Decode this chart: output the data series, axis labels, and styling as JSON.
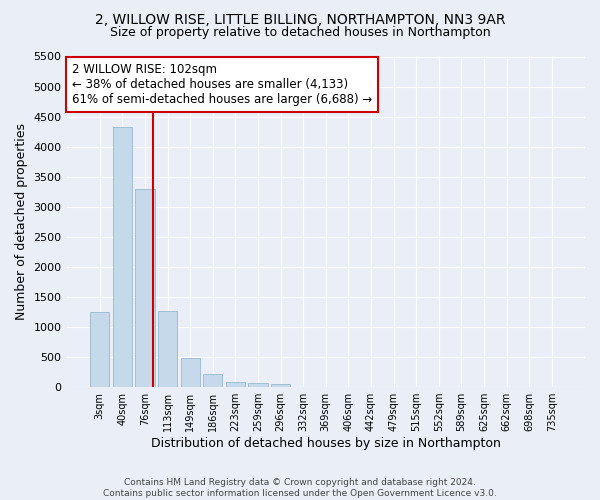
{
  "title1": "2, WILLOW RISE, LITTLE BILLING, NORTHAMPTON, NN3 9AR",
  "title2": "Size of property relative to detached houses in Northampton",
  "xlabel": "Distribution of detached houses by size in Northampton",
  "ylabel": "Number of detached properties",
  "footnote": "Contains HM Land Registry data © Crown copyright and database right 2024.\nContains public sector information licensed under the Open Government Licence v3.0.",
  "bar_labels": [
    "3sqm",
    "40sqm",
    "76sqm",
    "113sqm",
    "149sqm",
    "186sqm",
    "223sqm",
    "259sqm",
    "296sqm",
    "332sqm",
    "369sqm",
    "406sqm",
    "442sqm",
    "479sqm",
    "515sqm",
    "552sqm",
    "589sqm",
    "625sqm",
    "662sqm",
    "698sqm",
    "735sqm"
  ],
  "bar_values": [
    1250,
    4330,
    3300,
    1270,
    480,
    215,
    90,
    60,
    45,
    0,
    0,
    0,
    0,
    0,
    0,
    0,
    0,
    0,
    0,
    0,
    0
  ],
  "bar_color": "#c6d9ea",
  "bar_edge_color": "#a0bfd4",
  "vline_color": "#cc0000",
  "vline_x_index": 2,
  "annotation_text": "2 WILLOW RISE: 102sqm\n← 38% of detached houses are smaller (4,133)\n61% of semi-detached houses are larger (6,688) →",
  "annotation_box_color": "#cc0000",
  "ylim": [
    0,
    5500
  ],
  "yticks": [
    0,
    500,
    1000,
    1500,
    2000,
    2500,
    3000,
    3500,
    4000,
    4500,
    5000,
    5500
  ],
  "bg_color": "#eaeff7",
  "plot_bg_color": "#eaeff7",
  "title1_fontsize": 10,
  "title2_fontsize": 9,
  "ylabel_fontsize": 9,
  "xlabel_fontsize": 9
}
